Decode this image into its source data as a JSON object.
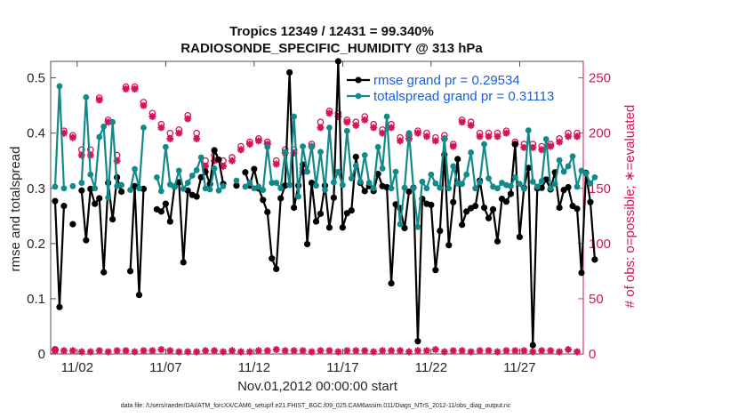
{
  "chart_data": {
    "type": "line",
    "title": "Tropics 12349 / 12431 = 99.340%",
    "subtitle": "RADIOSONDE_SPECIFIC_HUMIDITY @ 313 hPa",
    "xlabel": "Nov.01,2012 00:00:00 start",
    "ylabel_left": "rmse and totalspread",
    "ylabel_right": "# of obs: o=possible; ∗=evaluated",
    "footer": "data file: /Users/raeder/DAI/ATM_forcXX/CAM6_setup/f.e21.FHIST_BGC.f09_025.CAM6assim.011/Diags_NTrS_2012-11/obs_diag_output.nc",
    "x_range": [
      0.5,
      30.6
    ],
    "ylim_left": [
      0,
      0.53
    ],
    "ylim_right": [
      0,
      265
    ],
    "yticks_left": [
      0,
      0.1,
      0.2,
      0.3,
      0.4,
      0.5
    ],
    "yticks_left_labels": [
      "0",
      "0.1",
      "0.2",
      "0.3",
      "0.4",
      "0.5"
    ],
    "yticks_right": [
      0,
      50,
      100,
      150,
      200,
      250
    ],
    "yticks_right_labels": [
      "0",
      "50",
      "100",
      "150",
      "200",
      "250"
    ],
    "xticks": [
      2,
      7,
      12,
      17,
      22,
      27
    ],
    "xtick_labels": [
      "11/02",
      "11/07",
      "11/12",
      "11/17",
      "11/22",
      "11/27"
    ],
    "colors": {
      "rmse": "#000000",
      "spread": "#138a8a",
      "obs": "#d6125b",
      "legend_text": "#1a5fd6"
    },
    "legend": [
      {
        "name": "rmse grand pr = 0.29534",
        "key": "rmse"
      },
      {
        "name": "totalspread grand pr = 0.31113",
        "key": "spread"
      }
    ],
    "x_step": 0.25,
    "x_start": 0.75,
    "series": [
      {
        "name": "rmse",
        "axis": "left",
        "values": [
          0.277,
          0.085,
          0.268,
          null,
          0.235,
          null,
          0.296,
          0.206,
          0.299,
          0.272,
          0.282,
          0.148,
          0.31,
          0.244,
          0.32,
          0.294,
          null,
          0.15,
          0.304,
          0.107,
          0.299,
          null,
          null,
          0.262,
          0.258,
          0.272,
          0.24,
          0.303,
          0.311,
          0.166,
          0.296,
          0.288,
          0.285,
          0.32,
          0.33,
          0.308,
          0.369,
          0.352,
          0.308,
          null,
          null,
          0.305,
          null,
          0.329,
          0.305,
          0.335,
          0.3,
          0.279,
          0.257,
          0.173,
          0.154,
          0.282,
          0.305,
          0.51,
          0.265,
          0.305,
          0.343,
          0.199,
          0.31,
          0.24,
          0.254,
          0.305,
          0.229,
          0.283,
          0.53,
          0.229,
          0.255,
          0.26,
          0.357,
          0.31,
          0.295,
          0.304,
          0.295,
          0.326,
          0.304,
          0.302,
          0.128,
          0.271,
          0.264,
          0.228,
          0.294,
          0.301,
          0.023,
          0.281,
          0.272,
          0.27,
          0.152,
          0.223,
          0.361,
          0.197,
          0.275,
          0.353,
          0.234,
          0.258,
          0.264,
          0.268,
          0.314,
          0.265,
          0.246,
          0.262,
          0.204,
          0.281,
          0.276,
          0.29,
          0.38,
          0.212,
          0.301,
          0.337,
          0.016,
          0.3,
          0.301,
          0.316,
          0.298,
          0.329,
          0.265,
          0.297,
          0.302,
          0.268,
          0.263,
          0.147,
          0.328,
          0.275,
          0.171
        ]
      },
      {
        "name": "totalspread",
        "axis": "left",
        "values": [
          0.303,
          0.485,
          0.3,
          null,
          0.304,
          null,
          0.31,
          0.465,
          0.325,
          0.3,
          0.393,
          0.412,
          0.283,
          0.42,
          0.304,
          0.306,
          null,
          0.297,
          0.335,
          0.3,
          0.41,
          null,
          null,
          0.32,
          0.295,
          0.375,
          0.307,
          0.303,
          0.332,
          0.299,
          0.31,
          0.323,
          0.333,
          0.356,
          0.3,
          0.298,
          0.336,
          0.296,
          0.304,
          null,
          null,
          0.314,
          null,
          0.303,
          0.31,
          0.3,
          0.303,
          0.297,
          0.375,
          0.31,
          0.31,
          0.3,
          0.366,
          0.306,
          0.43,
          0.285,
          0.376,
          0.33,
          0.376,
          0.305,
          0.366,
          0.297,
          0.41,
          0.311,
          0.33,
          0.306,
          0.404,
          0.318,
          0.341,
          0.312,
          0.36,
          0.31,
          0.3,
          0.375,
          0.336,
          0.43,
          0.3,
          0.33,
          0.235,
          0.301,
          0.4,
          0.3,
          0.23,
          0.312,
          0.3,
          0.325,
          0.309,
          0.301,
          0.39,
          0.3,
          0.34,
          0.309,
          0.308,
          0.325,
          0.365,
          0.3,
          0.311,
          0.38,
          0.318,
          0.303,
          0.3,
          0.31,
          0.306,
          0.304,
          0.32,
          0.308,
          0.299,
          0.405,
          0.312,
          0.303,
          0.313,
          0.389,
          0.3,
          0.308,
          0.351,
          0.33,
          0.34,
          0.358,
          0.303,
          0.332,
          0.327,
          0.309,
          0.32
        ]
      },
      {
        "name": "obs possible (daily profile)",
        "axis": "right",
        "marker": "o",
        "values": [
          4,
          202,
          198,
          185,
          185,
          232,
          212,
          180,
          242,
          242,
          228,
          218,
          208,
          200,
          203,
          216,
          200,
          175,
          180,
          175,
          178,
          188,
          192,
          195,
          192,
          175,
          185,
          185,
          168,
          190,
          210,
          220,
          218,
          212,
          210,
          215,
          208,
          203,
          208,
          196,
          198,
          202,
          200,
          196,
          198,
          190,
          212,
          210,
          200,
          200,
          200,
          202,
          192,
          190,
          190,
          188,
          190,
          195,
          200,
          200
        ]
      },
      {
        "name": "obs evaluated (daily profile)",
        "axis": "right",
        "marker": "*",
        "values": [
          3,
          200,
          196,
          180,
          180,
          230,
          210,
          175,
          240,
          240,
          225,
          215,
          205,
          195,
          200,
          213,
          195,
          170,
          175,
          170,
          175,
          185,
          190,
          193,
          190,
          172,
          182,
          182,
          165,
          188,
          205,
          218,
          215,
          210,
          207,
          212,
          205,
          200,
          205,
          193,
          195,
          200,
          197,
          193,
          195,
          188,
          210,
          207,
          197,
          197,
          197,
          200,
          190,
          187,
          187,
          185,
          188,
          192,
          197,
          197
        ]
      },
      {
        "name": "obs low (near zero)",
        "axis": "right",
        "marker": "*",
        "values": [
          4,
          3,
          3,
          2,
          2,
          3,
          2,
          3,
          3,
          2,
          3,
          3,
          4,
          3,
          2,
          2,
          2,
          3,
          3,
          2,
          3,
          2,
          2,
          3,
          3,
          4,
          3,
          3,
          3,
          2,
          3,
          3,
          2,
          3,
          3,
          3,
          2,
          3,
          3,
          3,
          2,
          3,
          3,
          4,
          2,
          3,
          3,
          2,
          3,
          3,
          2,
          3,
          3,
          3,
          2,
          3,
          3,
          2,
          4,
          2
        ]
      }
    ]
  }
}
